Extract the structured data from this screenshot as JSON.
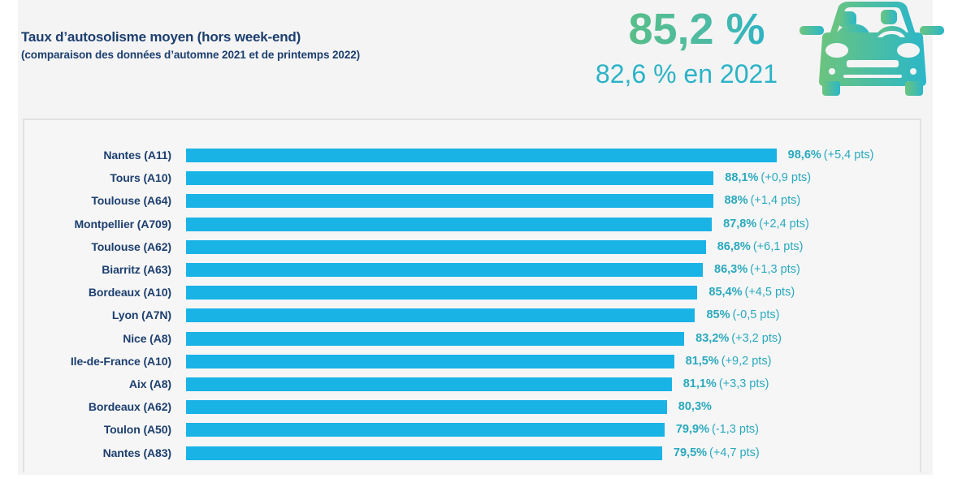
{
  "header": {
    "title": "Taux d’autosolisme moyen (hors week-end)",
    "subtitle": "(comparaison des données d’automne 2021 et de printemps 2022)",
    "headline_value": "85,2 %",
    "headline_previous": "82,6 % en 2021",
    "icon": "car-with-passengers-icon"
  },
  "colors": {
    "bar": "#1ab3e6",
    "label_text": "#1d3f6e",
    "value_text": "#2aa9bd",
    "headline_gradient_start": "#5cbf7f",
    "headline_gradient_end": "#20b0d4"
  },
  "chart_data": {
    "type": "bar",
    "orientation": "horizontal",
    "title": "Taux d’autosolisme moyen (hors week-end)",
    "subtitle": "(comparaison des données d’automne 2021 et de printemps 2022)",
    "xlabel": "",
    "ylabel": "",
    "xlim": [
      0,
      100
    ],
    "grid": false,
    "legend": "none",
    "categories": [
      "Nantes (A11)",
      "Tours (A10)",
      "Toulouse (A64)",
      "Montpellier (A709)",
      "Toulouse (A62)",
      "Biarritz (A63)",
      "Bordeaux (A10)",
      "Lyon (A7N)",
      "Nice (A8)",
      "Ile-de-France (A10)",
      "Aix (A8)",
      "Bordeaux (A62)",
      "Toulon (A50)",
      "Nantes (A83)"
    ],
    "values": [
      98.6,
      88.1,
      88.0,
      87.8,
      86.8,
      86.3,
      85.4,
      85.0,
      83.2,
      81.5,
      81.1,
      80.3,
      79.9,
      79.5
    ],
    "value_labels": [
      "98,6%",
      "88,1%",
      "88%",
      "87,8%",
      "86,8%",
      "86,3%",
      "85,4%",
      "85%",
      "83,2%",
      "81,5%",
      "81,1%",
      "80,3%",
      "79,9%",
      "79,5%"
    ],
    "change_points": [
      5.4,
      0.9,
      1.4,
      2.4,
      6.1,
      1.3,
      4.5,
      -0.5,
      3.2,
      9.2,
      3.3,
      null,
      -1.3,
      4.7
    ],
    "change_labels": [
      "(+5,4 pts)",
      "(+0,9 pts)",
      "(+1,4 pts)",
      "(+2,4 pts)",
      "(+6,1 pts)",
      "(+1,3 pts)",
      "(+4,5 pts)",
      "(-0,5 pts)",
      "(+3,2 pts)",
      "(+9,2 pts)",
      "(+3,3 pts)",
      "",
      "(-1,3 pts)",
      "(+4,7 pts)"
    ],
    "annotations": [
      "85,2 %",
      "82,6 % en 2021"
    ]
  }
}
